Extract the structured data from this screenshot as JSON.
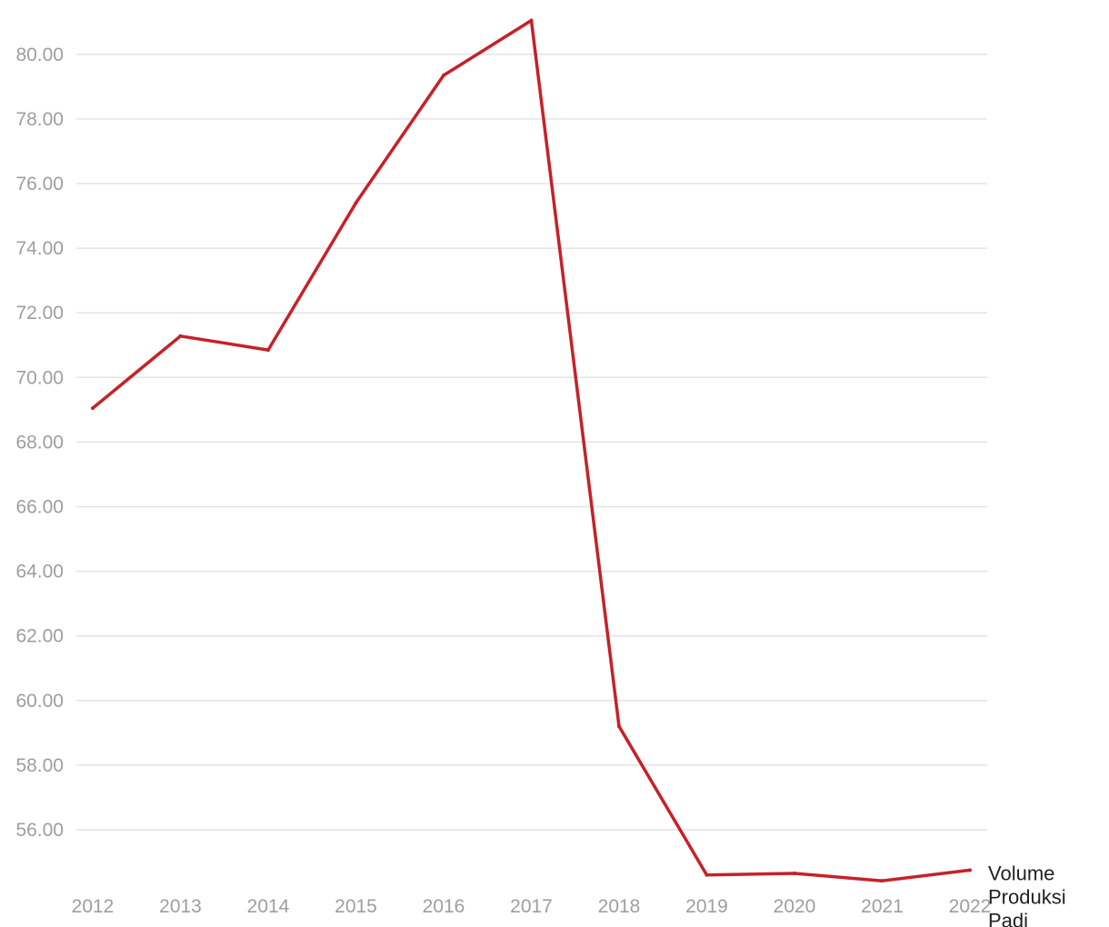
{
  "chart_data": {
    "type": "line",
    "title": "",
    "xlabel": "",
    "ylabel": "",
    "categories": [
      "2012",
      "2013",
      "2014",
      "2015",
      "2016",
      "2017",
      "2018",
      "2019",
      "2020",
      "2021",
      "2022"
    ],
    "series": [
      {
        "name": "Volume Produksi Padi",
        "values": [
          69.05,
          71.28,
          70.85,
          75.4,
          79.35,
          81.05,
          59.2,
          54.6,
          54.65,
          54.42,
          54.75
        ],
        "color": "#c62127"
      }
    ],
    "yticks": [
      "56.00",
      "58.00",
      "60.00",
      "62.00",
      "64.00",
      "66.00",
      "68.00",
      "70.00",
      "72.00",
      "74.00",
      "76.00",
      "78.00",
      "80.00"
    ],
    "ylim": [
      54.4,
      81.6
    ],
    "grid": true,
    "legend": "end-of-line label"
  }
}
